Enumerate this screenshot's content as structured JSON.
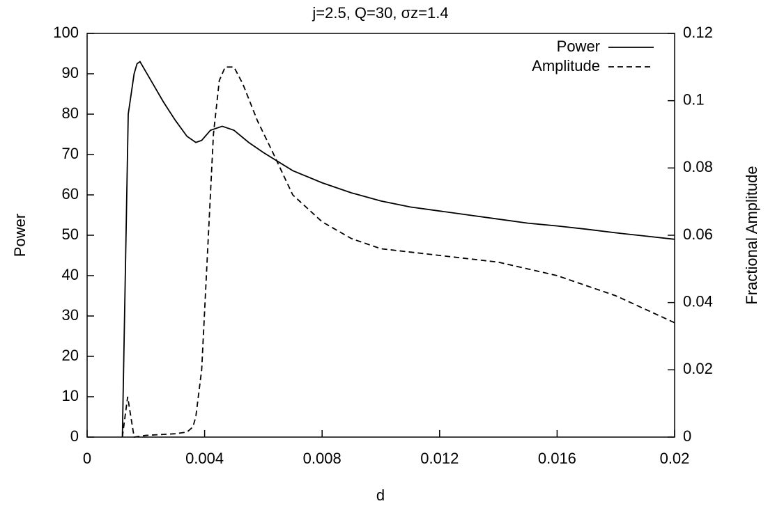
{
  "chart_data": {
    "type": "line",
    "title": "j=2.5, Q=30, σz=1.4",
    "xlabel": "d",
    "ylabel": "Power",
    "y2label": "Fractional Amplitude",
    "xlim": [
      0,
      0.02
    ],
    "xticks": [
      0,
      0.004,
      0.008,
      0.012,
      0.016,
      0.02
    ],
    "ylim": [
      0,
      100
    ],
    "yticks": [
      0,
      10,
      20,
      30,
      40,
      50,
      60,
      70,
      80,
      90,
      100
    ],
    "y2lim": [
      0,
      0.12
    ],
    "y2ticks": [
      0,
      0.02,
      0.04,
      0.06,
      0.08,
      0.1,
      0.12
    ],
    "legend": "upper right",
    "series": [
      {
        "name": "Power",
        "color": "#000000",
        "linestyle": "solid",
        "x": [
          0.0012,
          0.0014,
          0.0016,
          0.0017,
          0.0018,
          0.0022,
          0.0026,
          0.003,
          0.0034,
          0.0037,
          0.0039,
          0.0042,
          0.0046,
          0.005,
          0.0055,
          0.006,
          0.007,
          0.008,
          0.009,
          0.01,
          0.011,
          0.012,
          0.013,
          0.014,
          0.015,
          0.016,
          0.017,
          0.018,
          0.019,
          0.02
        ],
        "values": [
          0,
          80,
          90,
          92.5,
          93,
          88,
          83,
          78.5,
          74.5,
          73,
          73.5,
          76,
          77,
          76,
          73,
          70.5,
          66,
          63,
          60.5,
          58.5,
          57,
          56,
          55,
          54,
          53,
          52.3,
          51.5,
          50.6,
          49.8,
          49
        ]
      },
      {
        "name": "Amplitude",
        "color": "#000000",
        "linestyle": "dashed",
        "axis": "y2",
        "x": [
          0.0012,
          0.00138,
          0.0016,
          0.002,
          0.003,
          0.0034,
          0.0036,
          0.0037,
          0.0039,
          0.0041,
          0.0043,
          0.0045,
          0.0047,
          0.005,
          0.0053,
          0.0058,
          0.0063,
          0.007,
          0.008,
          0.009,
          0.01,
          0.011,
          0.012,
          0.013,
          0.014,
          0.015,
          0.016,
          0.017,
          0.018,
          0.019,
          0.02
        ],
        "values": [
          0,
          0.012,
          0,
          0.0005,
          0.001,
          0.0015,
          0.003,
          0.006,
          0.02,
          0.055,
          0.09,
          0.106,
          0.11,
          0.11,
          0.105,
          0.094,
          0.085,
          0.072,
          0.064,
          0.059,
          0.056,
          0.055,
          0.054,
          0.053,
          0.052,
          0.05,
          0.048,
          0.045,
          0.042,
          0.038,
          0.034
        ]
      }
    ]
  }
}
